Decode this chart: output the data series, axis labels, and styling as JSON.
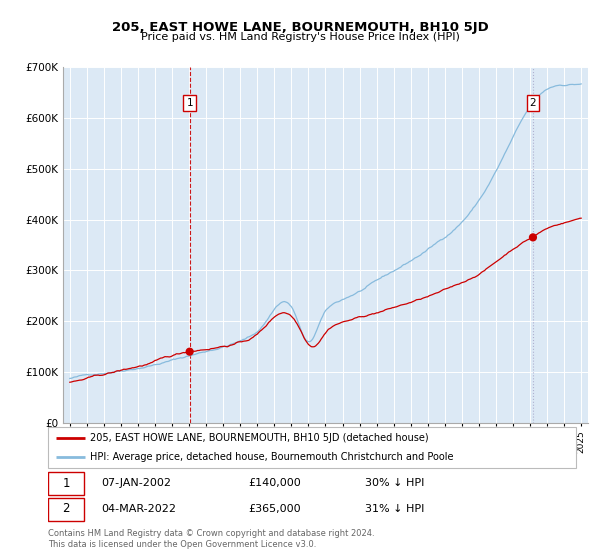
{
  "title": "205, EAST HOWE LANE, BOURNEMOUTH, BH10 5JD",
  "subtitle": "Price paid vs. HM Land Registry's House Price Index (HPI)",
  "bg_color": "#dce9f5",
  "line_color_hpi": "#88bbdd",
  "line_color_price": "#cc0000",
  "point1_year": 2002.03,
  "point1_value": 140000,
  "point2_year": 2022.17,
  "point2_value": 365000,
  "ylim_max": 700000,
  "yticks": [
    0,
    100000,
    200000,
    300000,
    400000,
    500000,
    600000,
    700000
  ],
  "ytick_labels": [
    "£0",
    "£100K",
    "£200K",
    "£300K",
    "£400K",
    "£500K",
    "£600K",
    "£700K"
  ],
  "legend_label_price": "205, EAST HOWE LANE, BOURNEMOUTH, BH10 5JD (detached house)",
  "legend_label_hpi": "HPI: Average price, detached house, Bournemouth Christchurch and Poole",
  "ann1_date": "07-JAN-2002",
  "ann1_price": "£140,000",
  "ann1_hpi": "30% ↓ HPI",
  "ann2_date": "04-MAR-2022",
  "ann2_price": "£365,000",
  "ann2_hpi": "31% ↓ HPI",
  "footer": "Contains HM Land Registry data © Crown copyright and database right 2024.\nThis data is licensed under the Open Government Licence v3.0."
}
